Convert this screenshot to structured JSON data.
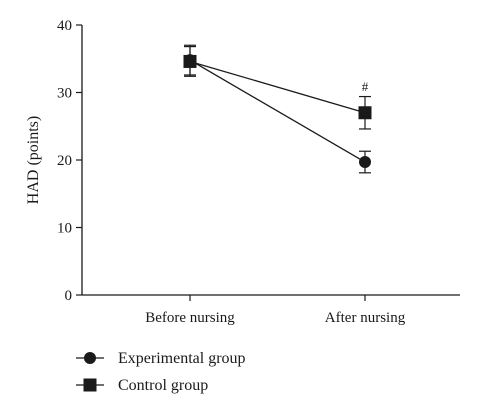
{
  "chart_data": {
    "type": "line",
    "xlabel": "",
    "ylabel": "HAD (points)",
    "categories": [
      "Before nursing",
      "After nursing"
    ],
    "ylim": [
      0,
      40
    ],
    "yticks": [
      0,
      10,
      20,
      30,
      40
    ],
    "grid": false,
    "legend_position": "bottom-left",
    "series": [
      {
        "name": "Experimental group",
        "marker": "circle",
        "values": [
          34.8,
          19.7
        ],
        "errors": [
          2.2,
          1.6
        ],
        "color": "#1a1a1a"
      },
      {
        "name": "Control group",
        "marker": "square",
        "values": [
          34.6,
          27.0
        ],
        "errors": [
          2.2,
          2.4
        ],
        "color": "#1a1a1a"
      }
    ],
    "annotations": [
      {
        "text": "#",
        "category": "After nursing",
        "y": 30.8
      }
    ]
  }
}
